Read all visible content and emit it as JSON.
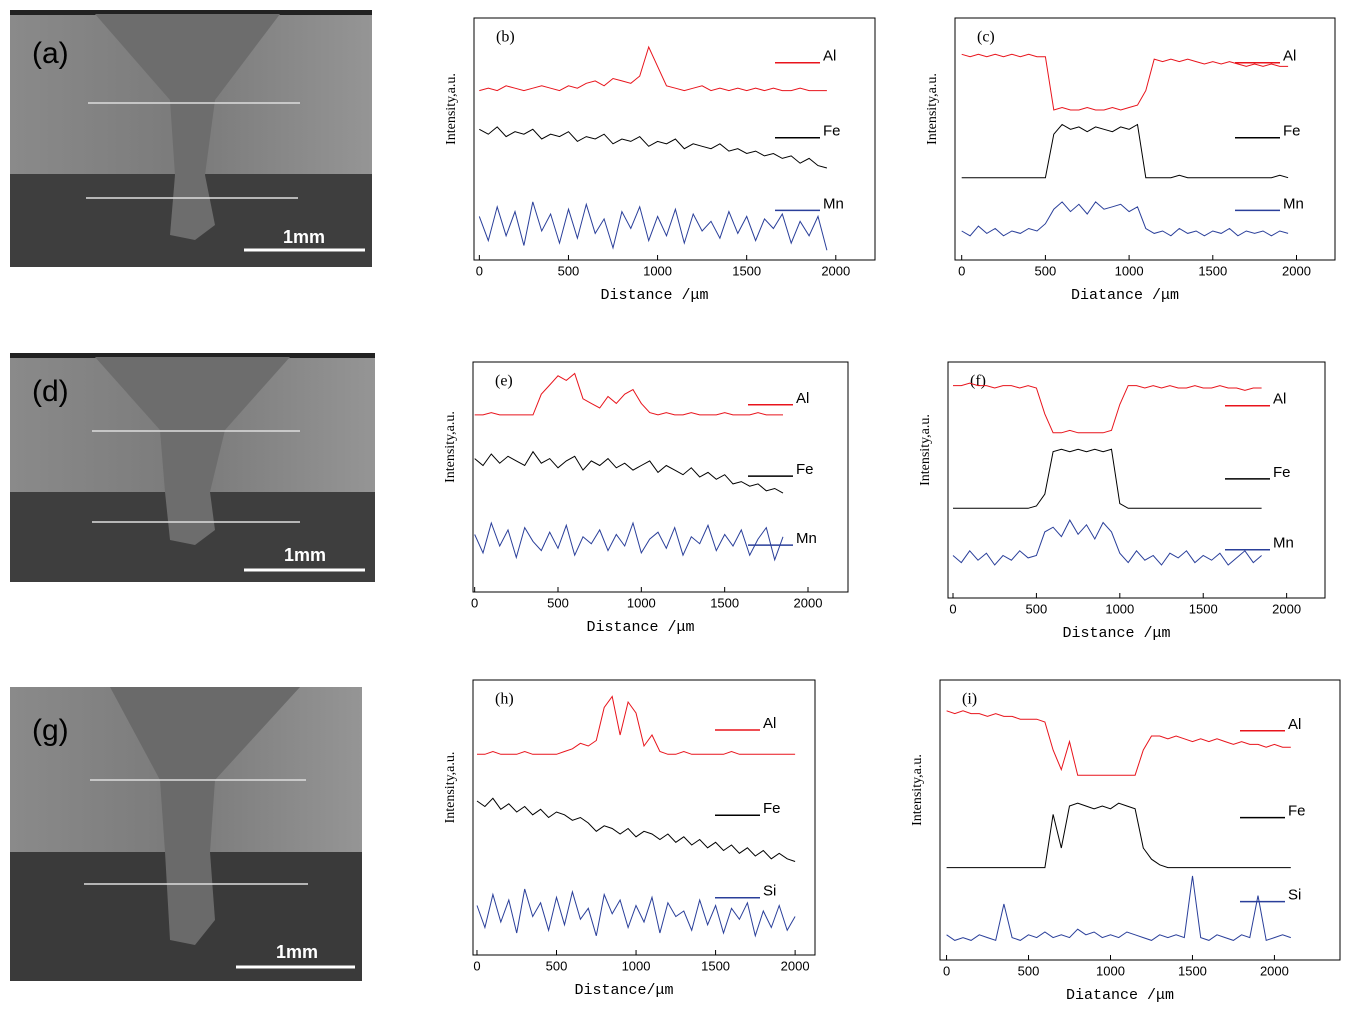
{
  "micrographs": [
    {
      "label": "(a)",
      "scale": "1mm"
    },
    {
      "label": "(d)",
      "scale": "1mm"
    },
    {
      "label": "(g)",
      "scale": "1mm"
    }
  ],
  "chart_data": [
    {
      "type": "line",
      "label": "(b)",
      "xlabel": "Distance /μm",
      "ylabel": "Intensity,a.u.",
      "xlim": [
        -30,
        2220
      ],
      "xticks": [
        0,
        500,
        1000,
        1500,
        2000
      ],
      "ylim": [
        0,
        100
      ],
      "x": [
        0,
        50,
        100,
        150,
        200,
        250,
        300,
        350,
        400,
        450,
        500,
        550,
        600,
        650,
        700,
        750,
        800,
        850,
        900,
        950,
        1000,
        1050,
        1100,
        1150,
        1200,
        1250,
        1300,
        1350,
        1400,
        1450,
        1500,
        1550,
        1600,
        1650,
        1700,
        1750,
        1800,
        1850,
        1900,
        1950
      ],
      "series": [
        {
          "name": "Al",
          "color": "#e8141c",
          "values": [
            70,
            71,
            70,
            72,
            71,
            70,
            71,
            72,
            71,
            70,
            72,
            71,
            73,
            74,
            72,
            75,
            74,
            73,
            76,
            88,
            80,
            72,
            71,
            70,
            71,
            72,
            70,
            71,
            70,
            71,
            70,
            71,
            70,
            71,
            70,
            70,
            71,
            70,
            70,
            70
          ]
        },
        {
          "name": "Fe",
          "color": "#000000",
          "values": [
            54,
            52,
            55,
            51,
            53,
            52,
            54,
            50,
            52,
            51,
            53,
            49,
            51,
            50,
            52,
            48,
            50,
            49,
            51,
            47,
            49,
            48,
            50,
            46,
            48,
            47,
            46,
            48,
            45,
            46,
            44,
            45,
            43,
            44,
            42,
            43,
            40,
            42,
            39,
            38
          ]
        },
        {
          "name": "Mn",
          "color": "#2a3f9a",
          "values": [
            18,
            8,
            22,
            10,
            20,
            6,
            24,
            12,
            19,
            7,
            21,
            9,
            23,
            11,
            17,
            5,
            20,
            13,
            22,
            8,
            18,
            10,
            21,
            7,
            19,
            12,
            16,
            9,
            20,
            11,
            18,
            8,
            17,
            13,
            19,
            7,
            16,
            10,
            18,
            4
          ]
        }
      ]
    },
    {
      "type": "line",
      "label": "(c)",
      "xlabel": "Diatance /μm",
      "ylabel": "Intensity,a.u.",
      "xlim": [
        -40,
        2230
      ],
      "xticks": [
        0,
        500,
        1000,
        1500,
        2000
      ],
      "ylim": [
        0,
        100
      ],
      "x": [
        0,
        50,
        100,
        150,
        200,
        250,
        300,
        350,
        400,
        450,
        500,
        550,
        600,
        650,
        700,
        750,
        800,
        850,
        900,
        950,
        1000,
        1050,
        1100,
        1150,
        1200,
        1250,
        1300,
        1350,
        1400,
        1450,
        1500,
        1550,
        1600,
        1650,
        1700,
        1750,
        1800,
        1850,
        1900,
        1950
      ],
      "series": [
        {
          "name": "Al",
          "color": "#e8141c",
          "values": [
            85,
            84,
            85,
            84,
            85,
            84,
            85,
            84,
            85,
            84,
            84,
            62,
            63,
            62,
            62,
            63,
            62,
            62,
            63,
            62,
            63,
            64,
            70,
            83,
            82,
            83,
            82,
            83,
            82,
            81,
            82,
            81,
            82,
            81,
            80,
            81,
            80,
            81,
            80,
            80
          ]
        },
        {
          "name": "Fe",
          "color": "#000000",
          "values": [
            34,
            34,
            34,
            34,
            34,
            34,
            34,
            34,
            34,
            34,
            34,
            52,
            56,
            54,
            55,
            53,
            55,
            54,
            53,
            55,
            54,
            56,
            34,
            34,
            34,
            34,
            35,
            34,
            34,
            34,
            34,
            34,
            34,
            34,
            34,
            34,
            34,
            34,
            35,
            34
          ]
        },
        {
          "name": "Mn",
          "color": "#2a3f9a",
          "values": [
            12,
            10,
            14,
            11,
            13,
            10,
            12,
            11,
            13,
            12,
            15,
            21,
            24,
            20,
            23,
            19,
            24,
            21,
            22,
            23,
            20,
            22,
            13,
            11,
            12,
            10,
            13,
            11,
            12,
            10,
            12,
            11,
            13,
            10,
            12,
            11,
            12,
            10,
            12,
            11
          ]
        }
      ]
    },
    {
      "type": "line",
      "label": "(e)",
      "xlabel": "Distance /μm",
      "ylabel": "Intensity,a.u.",
      "xlim": [
        -10,
        2240
      ],
      "xticks": [
        0,
        500,
        1000,
        1500,
        2000
      ],
      "ylim": [
        0,
        100
      ],
      "x": [
        0,
        50,
        100,
        150,
        200,
        250,
        300,
        350,
        400,
        450,
        500,
        550,
        600,
        650,
        700,
        750,
        800,
        850,
        900,
        950,
        1000,
        1050,
        1100,
        1150,
        1200,
        1250,
        1300,
        1350,
        1400,
        1450,
        1500,
        1550,
        1600,
        1650,
        1700,
        1750,
        1800,
        1850
      ],
      "series": [
        {
          "name": "Al",
          "color": "#e8141c",
          "values": [
            77,
            77,
            78,
            77,
            77,
            77,
            77,
            77,
            86,
            90,
            94,
            92,
            95,
            84,
            82,
            80,
            85,
            82,
            86,
            88,
            82,
            78,
            77,
            78,
            77,
            77,
            78,
            77,
            77,
            77,
            78,
            77,
            77,
            77,
            78,
            77,
            77,
            77
          ]
        },
        {
          "name": "Fe",
          "color": "#000000",
          "values": [
            58,
            55,
            60,
            56,
            59,
            57,
            55,
            61,
            56,
            58,
            54,
            57,
            59,
            53,
            57,
            55,
            58,
            54,
            56,
            53,
            55,
            57,
            52,
            55,
            53,
            51,
            54,
            50,
            52,
            49,
            51,
            47,
            48,
            46,
            47,
            44,
            45,
            43
          ]
        },
        {
          "name": "Mn",
          "color": "#2a3f9a",
          "values": [
            25,
            17,
            30,
            20,
            27,
            15,
            28,
            22,
            18,
            26,
            19,
            29,
            16,
            24,
            21,
            27,
            18,
            25,
            20,
            30,
            17,
            23,
            26,
            19,
            28,
            16,
            24,
            21,
            29,
            18,
            25,
            20,
            27,
            16,
            23,
            28,
            14,
            24
          ]
        }
      ]
    },
    {
      "type": "line",
      "label": "(f)",
      "xlabel": "Distance /μm",
      "ylabel": "Intensity,a.u.",
      "xlim": [
        -30,
        2230
      ],
      "xticks": [
        0,
        500,
        1000,
        1500,
        2000
      ],
      "ylim": [
        0,
        100
      ],
      "x": [
        0,
        50,
        100,
        150,
        200,
        250,
        300,
        350,
        400,
        450,
        500,
        550,
        600,
        650,
        700,
        750,
        800,
        850,
        900,
        950,
        1000,
        1050,
        1100,
        1150,
        1200,
        1250,
        1300,
        1350,
        1400,
        1450,
        1500,
        1550,
        1600,
        1650,
        1700,
        1750,
        1800,
        1850
      ],
      "series": [
        {
          "name": "Al",
          "color": "#e8141c",
          "values": [
            90,
            90,
            91,
            90,
            90,
            89,
            90,
            90,
            89,
            90,
            89,
            78,
            70,
            70,
            71,
            70,
            70,
            70,
            70,
            71,
            82,
            90,
            90,
            89,
            90,
            89,
            90,
            89,
            89,
            90,
            89,
            89,
            90,
            89,
            89,
            88,
            89,
            89
          ]
        },
        {
          "name": "Fe",
          "color": "#000000",
          "values": [
            38,
            38,
            38,
            38,
            38,
            38,
            38,
            38,
            38,
            38,
            39,
            44,
            62,
            63,
            62,
            63,
            62,
            63,
            62,
            63,
            40,
            38,
            38,
            38,
            38,
            38,
            38,
            38,
            38,
            38,
            38,
            38,
            38,
            38,
            38,
            38,
            38,
            38
          ]
        },
        {
          "name": "Mn",
          "color": "#2a3f9a",
          "values": [
            18,
            15,
            20,
            16,
            19,
            14,
            18,
            16,
            20,
            17,
            18,
            28,
            30,
            26,
            33,
            27,
            31,
            25,
            32,
            28,
            19,
            15,
            20,
            16,
            18,
            14,
            19,
            17,
            20,
            15,
            18,
            16,
            19,
            14,
            17,
            20,
            15,
            18
          ]
        }
      ]
    },
    {
      "type": "line",
      "label": "(h)",
      "xlabel": "Distance/μm",
      "ylabel": "Intensity,a.u.",
      "xlim": [
        -25,
        2125
      ],
      "xticks": [
        0,
        500,
        1000,
        1500,
        2000
      ],
      "ylim": [
        0,
        100
      ],
      "x": [
        0,
        50,
        100,
        150,
        200,
        250,
        300,
        350,
        400,
        450,
        500,
        550,
        600,
        650,
        700,
        750,
        800,
        850,
        900,
        950,
        1000,
        1050,
        1100,
        1150,
        1200,
        1250,
        1300,
        1350,
        1400,
        1450,
        1500,
        1550,
        1600,
        1650,
        1700,
        1750,
        1800,
        1850,
        1900,
        1950,
        2000
      ],
      "series": [
        {
          "name": "Al",
          "color": "#e8141c",
          "values": [
            73,
            73,
            74,
            73,
            73,
            73,
            74,
            73,
            73,
            73,
            73,
            74,
            75,
            77,
            76,
            78,
            90,
            94,
            80,
            92,
            88,
            76,
            80,
            74,
            73,
            73,
            74,
            73,
            73,
            73,
            73,
            73,
            74,
            73,
            73,
            73,
            73,
            73,
            73,
            73,
            73
          ]
        },
        {
          "name": "Fe",
          "color": "#000000",
          "values": [
            56,
            54,
            57,
            53,
            55,
            52,
            54,
            51,
            53,
            50,
            52,
            51,
            49,
            50,
            48,
            45,
            47,
            46,
            44,
            46,
            43,
            45,
            44,
            42,
            44,
            41,
            43,
            40,
            42,
            39,
            41,
            38,
            40,
            37,
            39,
            36,
            38,
            35,
            37,
            35,
            34
          ]
        },
        {
          "name": "Si",
          "color": "#2a3f9a",
          "values": [
            18,
            10,
            22,
            12,
            20,
            8,
            24,
            14,
            19,
            9,
            21,
            11,
            23,
            13,
            17,
            7,
            22,
            15,
            20,
            10,
            18,
            12,
            21,
            8,
            19,
            14,
            16,
            9,
            20,
            11,
            18,
            8,
            17,
            13,
            19,
            7,
            16,
            10,
            18,
            9,
            14
          ]
        }
      ]
    },
    {
      "type": "line",
      "label": "(i)",
      "xlabel": "Diatance /μm",
      "ylabel": "Intensity,a.u.",
      "xlim": [
        -40,
        2400
      ],
      "xticks": [
        0,
        500,
        1000,
        1500,
        2000
      ],
      "ylim": [
        0,
        100
      ],
      "x": [
        0,
        50,
        100,
        150,
        200,
        250,
        300,
        350,
        400,
        450,
        500,
        550,
        600,
        650,
        700,
        750,
        800,
        850,
        900,
        950,
        1000,
        1050,
        1100,
        1150,
        1200,
        1250,
        1300,
        1350,
        1400,
        1450,
        1500,
        1550,
        1600,
        1650,
        1700,
        1750,
        1800,
        1850,
        1900,
        1950,
        2000,
        2050,
        2100
      ],
      "series": [
        {
          "name": "Al",
          "color": "#e8141c",
          "values": [
            89,
            88,
            89,
            88,
            88,
            87,
            88,
            87,
            87,
            86,
            86,
            86,
            85,
            75,
            68,
            78,
            66,
            66,
            66,
            66,
            66,
            66,
            66,
            66,
            75,
            80,
            80,
            79,
            80,
            79,
            78,
            79,
            78,
            79,
            78,
            77,
            78,
            77,
            77,
            76,
            77,
            76,
            76
          ]
        },
        {
          "name": "Fe",
          "color": "#000000",
          "values": [
            33,
            33,
            33,
            33,
            33,
            33,
            33,
            33,
            33,
            33,
            33,
            33,
            33,
            52,
            40,
            55,
            56,
            55,
            54,
            55,
            54,
            56,
            55,
            54,
            40,
            36,
            34,
            33,
            33,
            33,
            33,
            33,
            33,
            33,
            33,
            33,
            33,
            33,
            33,
            33,
            33,
            33,
            33
          ]
        },
        {
          "name": "Si",
          "color": "#2a3f9a",
          "values": [
            9,
            7,
            8,
            7,
            9,
            8,
            7,
            20,
            8,
            7,
            9,
            8,
            10,
            8,
            9,
            8,
            11,
            9,
            10,
            8,
            9,
            8,
            10,
            9,
            8,
            7,
            9,
            8,
            9,
            8,
            30,
            8,
            7,
            9,
            8,
            7,
            9,
            8,
            23,
            7,
            8,
            9,
            8
          ]
        }
      ]
    }
  ]
}
